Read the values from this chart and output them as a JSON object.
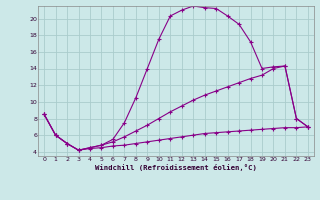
{
  "xlabel": "Windchill (Refroidissement éolien,°C)",
  "bg_color": "#cce8e8",
  "grid_color": "#aacccc",
  "line_color": "#880088",
  "xlim": [
    -0.5,
    23.5
  ],
  "ylim": [
    3.5,
    21.5
  ],
  "yticks": [
    4,
    6,
    8,
    10,
    12,
    14,
    16,
    18,
    20
  ],
  "xticks": [
    0,
    1,
    2,
    3,
    4,
    5,
    6,
    7,
    8,
    9,
    10,
    11,
    12,
    13,
    14,
    15,
    16,
    17,
    18,
    19,
    20,
    21,
    22,
    23
  ],
  "series1_x": [
    0,
    1,
    2,
    3,
    4,
    5,
    6,
    7,
    8,
    9,
    10,
    11,
    12,
    13,
    14,
    15,
    16,
    17,
    18,
    19,
    20,
    21,
    22,
    23
  ],
  "series1_y": [
    8.5,
    6.0,
    5.0,
    4.2,
    4.4,
    4.5,
    4.7,
    4.8,
    5.0,
    5.2,
    5.4,
    5.6,
    5.8,
    6.0,
    6.2,
    6.3,
    6.4,
    6.5,
    6.6,
    6.7,
    6.8,
    6.9,
    6.9,
    7.0
  ],
  "series2_x": [
    0,
    1,
    2,
    3,
    4,
    5,
    6,
    7,
    8,
    9,
    10,
    11,
    12,
    13,
    14,
    15,
    16,
    17,
    18,
    19,
    20,
    21,
    22,
    23
  ],
  "series2_y": [
    8.5,
    6.0,
    5.0,
    4.2,
    4.5,
    4.8,
    5.5,
    7.5,
    10.5,
    14.0,
    17.5,
    20.3,
    21.0,
    21.5,
    21.3,
    21.2,
    20.3,
    19.3,
    17.2,
    14.0,
    14.2,
    14.3,
    8.0,
    7.0
  ],
  "series3_x": [
    0,
    1,
    2,
    3,
    4,
    5,
    6,
    7,
    8,
    9,
    10,
    11,
    12,
    13,
    14,
    15,
    16,
    17,
    18,
    19,
    20,
    21,
    22,
    23
  ],
  "series3_y": [
    8.5,
    6.0,
    5.0,
    4.2,
    4.5,
    4.8,
    5.2,
    5.8,
    6.5,
    7.2,
    8.0,
    8.8,
    9.5,
    10.2,
    10.8,
    11.3,
    11.8,
    12.3,
    12.8,
    13.2,
    14.0,
    14.3,
    8.0,
    7.0
  ]
}
